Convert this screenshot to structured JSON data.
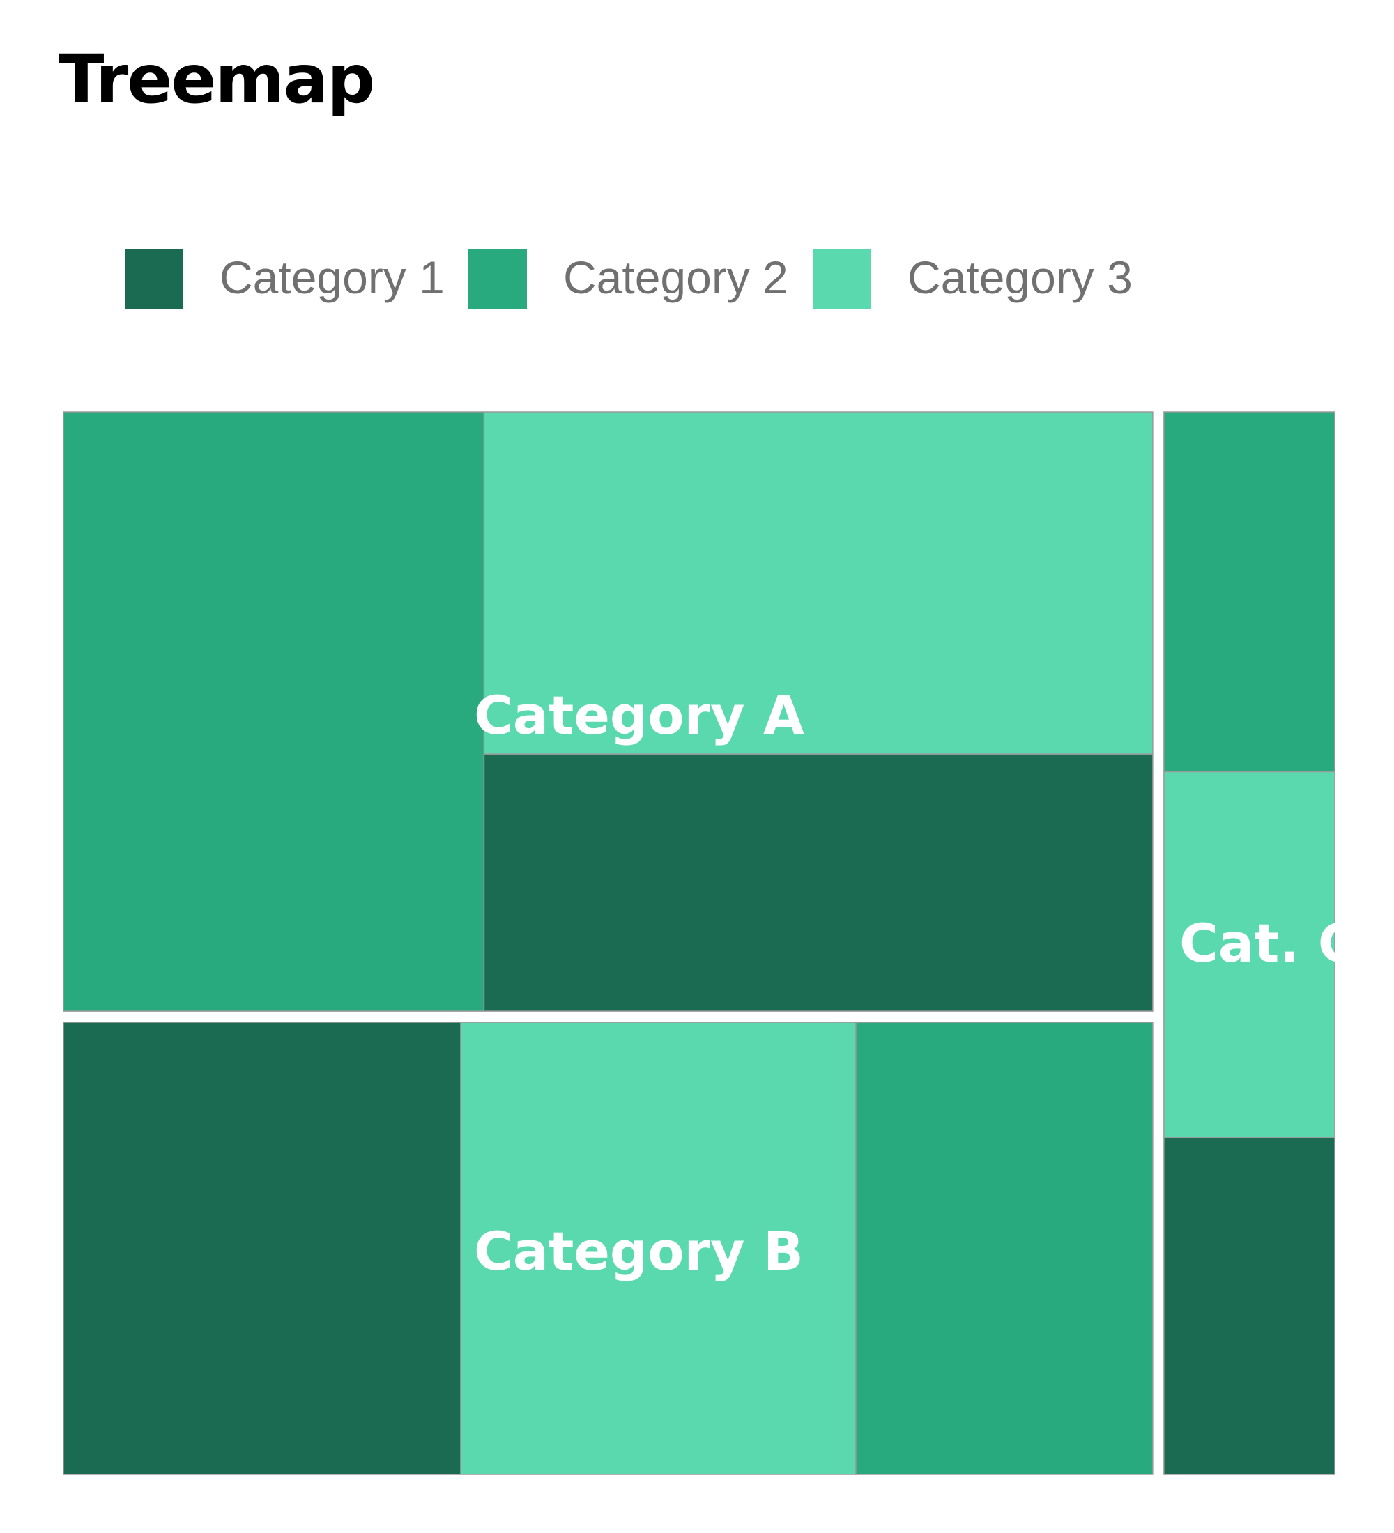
{
  "title": "Treemap",
  "legend": {
    "items": [
      {
        "label": "Category 1",
        "color": "#1a6b52"
      },
      {
        "label": "Category 2",
        "color": "#28a97e"
      },
      {
        "label": "Category 3",
        "color": "#5bd9ae"
      }
    ]
  },
  "chart_data": {
    "type": "treemap",
    "title": "Treemap",
    "legend_position": "top",
    "groups": [
      {
        "name": "Category A",
        "children": [
          {
            "category": "Category 2",
            "value": 261
          },
          {
            "category": "Category 3",
            "value": 237
          },
          {
            "category": "Category 1",
            "value": 178
          }
        ]
      },
      {
        "name": "Category B",
        "children": [
          {
            "category": "Category 1",
            "value": 186
          },
          {
            "category": "Category 3",
            "value": 185
          },
          {
            "category": "Category 2",
            "value": 139
          }
        ]
      },
      {
        "name": "Cat. C",
        "children": [
          {
            "category": "Category 2",
            "value": 63
          },
          {
            "category": "Category 3",
            "value": 64
          },
          {
            "category": "Category 1",
            "value": 59
          }
        ]
      }
    ]
  }
}
